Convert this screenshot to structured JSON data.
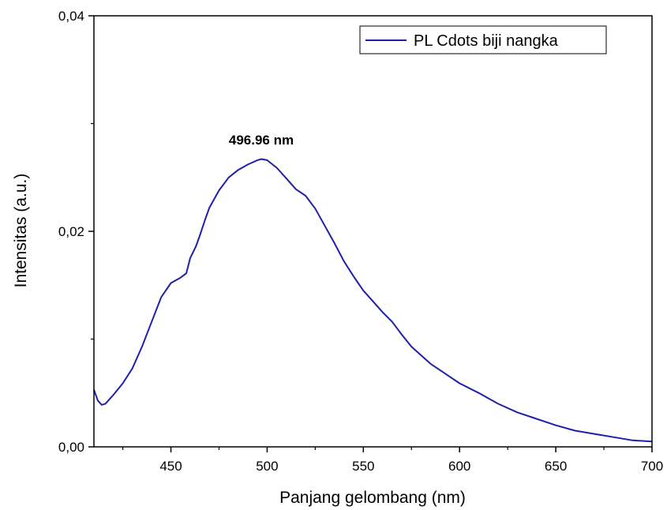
{
  "chart_data": {
    "type": "line",
    "title": "",
    "xlabel": "Panjang gelombang (nm)",
    "ylabel": "Intensitas (a.u.)",
    "xlim": [
      410,
      700
    ],
    "ylim": [
      0,
      0.04
    ],
    "x_ticks": [
      450,
      500,
      550,
      600,
      650,
      700
    ],
    "x_tick_labels": [
      "450",
      "500",
      "550",
      "600",
      "650",
      "700"
    ],
    "y_ticks": [
      0,
      0.02,
      0.04
    ],
    "y_tick_labels": [
      "0,00",
      "0,02",
      "0,04"
    ],
    "y_minor_ticks": [
      0.01,
      0.03
    ],
    "grid": false,
    "legend_position": "top-right",
    "annotation": {
      "text": "496.96 nm",
      "x": 496.96,
      "y": 0.0268
    },
    "series": [
      {
        "name": "PL Cdots biji nangka",
        "color": "#1f1fa8",
        "x": [
          410,
          412,
          414,
          416,
          418,
          420,
          425,
          430,
          435,
          440,
          445,
          450,
          455,
          458,
          460,
          463,
          465,
          468,
          470,
          475,
          480,
          485,
          490,
          495,
          497,
          500,
          505,
          510,
          515,
          520,
          525,
          530,
          535,
          540,
          545,
          550,
          555,
          560,
          565,
          570,
          575,
          580,
          585,
          590,
          595,
          600,
          610,
          620,
          630,
          640,
          650,
          660,
          670,
          680,
          690,
          700
        ],
        "y": [
          0.0053,
          0.0043,
          0.0039,
          0.004,
          0.0044,
          0.0048,
          0.0059,
          0.0073,
          0.0093,
          0.0116,
          0.0139,
          0.0152,
          0.0157,
          0.0161,
          0.0175,
          0.0186,
          0.0196,
          0.0212,
          0.0222,
          0.0238,
          0.025,
          0.0257,
          0.0262,
          0.0266,
          0.0267,
          0.0266,
          0.0259,
          0.0249,
          0.0239,
          0.0233,
          0.0221,
          0.0205,
          0.0189,
          0.0172,
          0.0158,
          0.0145,
          0.0135,
          0.0125,
          0.0116,
          0.0104,
          0.0093,
          0.0085,
          0.0077,
          0.0071,
          0.0065,
          0.0059,
          0.005,
          0.004,
          0.0032,
          0.0026,
          0.002,
          0.0015,
          0.0012,
          0.0009,
          0.0006,
          0.0005
        ]
      }
    ]
  }
}
